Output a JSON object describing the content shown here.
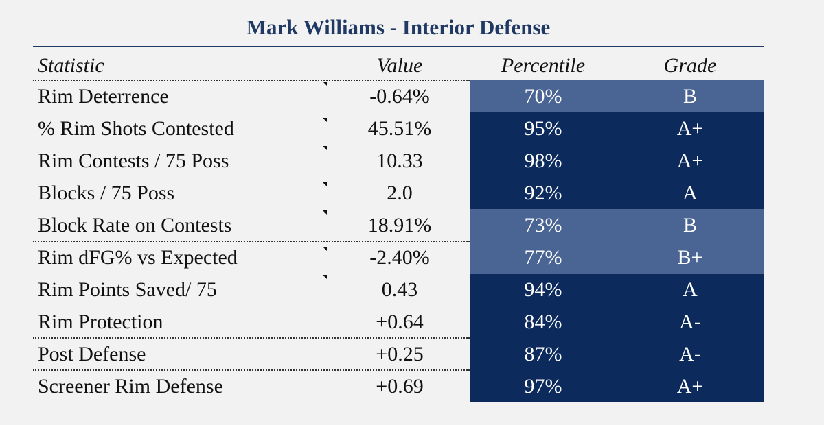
{
  "title": "Mark Williams - Interior Defense",
  "table": {
    "header": [
      "Statistic",
      "Value",
      "Percentile",
      "Grade"
    ],
    "rows": [
      [
        "Rim Deterrence",
        "-0.64%",
        "70%",
        "B"
      ],
      [
        "% Rim Shots Contested",
        "45.51%",
        "95%",
        "A+"
      ],
      [
        "Rim Contests / 75 Poss",
        "10.33",
        "98%",
        "A+"
      ],
      [
        "Blocks / 75 Poss",
        "2.0",
        "92%",
        "A"
      ],
      [
        "Block Rate on Contests",
        "18.91%",
        "73%",
        "B"
      ],
      [
        "Rim dFG% vs Expected",
        "-2.40%",
        "77%",
        "B+"
      ],
      [
        "Rim Points Saved/ 75",
        "0.43",
        "94%",
        "A"
      ],
      [
        "Rim Protection",
        "+0.64",
        "84%",
        "A-"
      ],
      [
        "Post Defense",
        "+0.25",
        "87%",
        "A-"
      ],
      [
        "Screener Rim Defense",
        "+0.69",
        "97%",
        "A+"
      ]
    ],
    "row_colors": [
      "#4a6594",
      "#0c2a5c",
      "#0c2a5c",
      "#0c2a5c",
      "#4a6594",
      "#4a6594",
      "#0c2a5c",
      "#0c2a5c",
      "#0c2a5c",
      "#0c2a5c"
    ]
  }
}
